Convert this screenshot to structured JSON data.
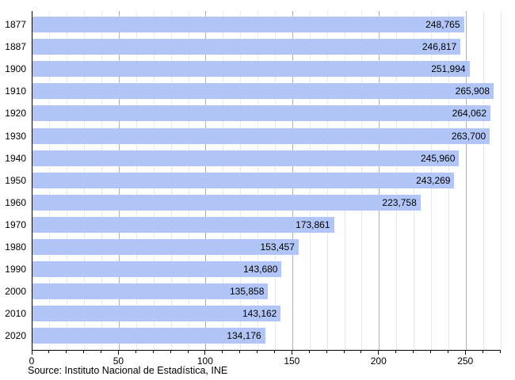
{
  "chart_data": {
    "type": "bar",
    "orientation": "horizontal",
    "title": "",
    "xlabel": "",
    "ylabel": "",
    "categories": [
      "1877",
      "1887",
      "1900",
      "1910",
      "1920",
      "1930",
      "1940",
      "1950",
      "1960",
      "1970",
      "1980",
      "1990",
      "2000",
      "2010",
      "2020"
    ],
    "values": [
      248765,
      246817,
      251994,
      265908,
      264062,
      263700,
      245960,
      243269,
      223758,
      173861,
      153457,
      143680,
      135858,
      143162,
      134176
    ],
    "value_labels": [
      "248,765",
      "246,817",
      "251,994",
      "265,908",
      "264,062",
      "263,700",
      "245,960",
      "243,269",
      "223,758",
      "173,861",
      "153,457",
      "143,680",
      "135,858",
      "143,162",
      "134,176"
    ],
    "x_ticks": [
      0,
      50,
      100,
      150,
      200,
      250
    ],
    "x_tick_labels": [
      "0",
      "50",
      "100",
      "150",
      "200",
      "250"
    ],
    "x_minor_tick_step": 10,
    "xlim": [
      0,
      270
    ],
    "x_axis_unit": "thousands",
    "grid": "vertical",
    "legend_position": "none",
    "bar_color": "#b2c5f7",
    "grid_minor_color": "#e9e9e9",
    "grid_major_color": "#b0b0b0",
    "axis_color": "#000000",
    "source": "Source: Instituto Nacional de Estadística, INE"
  }
}
